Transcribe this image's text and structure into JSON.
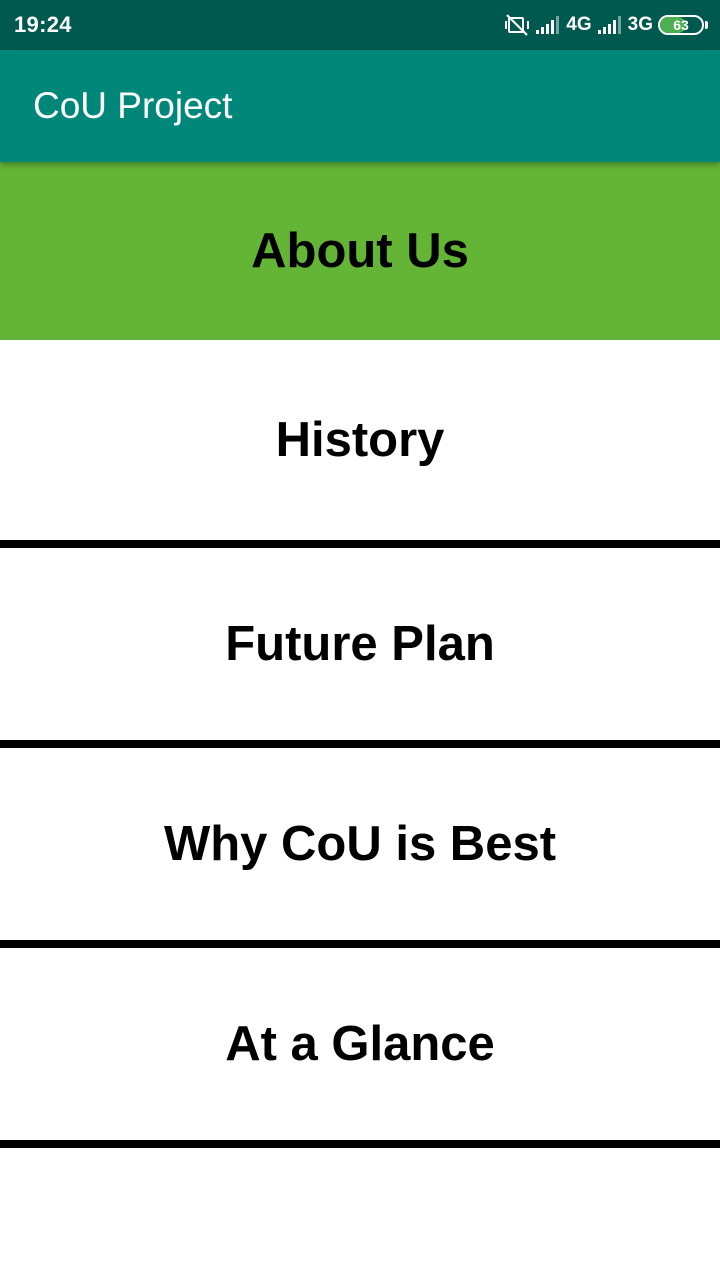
{
  "status_bar": {
    "time": "19:24",
    "network_1": "4G",
    "network_2": "3G",
    "battery_level": "63",
    "battery_fraction": 0.63,
    "icons": [
      "vibrate-off-icon",
      "signal-icon",
      "signal-icon",
      "battery-icon"
    ]
  },
  "app_bar": {
    "title": "CoU Project",
    "color": "#00877a"
  },
  "menu": {
    "accent_color": "#64b436",
    "items": [
      {
        "label": "About Us",
        "selected": true
      },
      {
        "label": "History",
        "selected": false
      },
      {
        "label": "Future Plan",
        "selected": false
      },
      {
        "label": "Why CoU is Best",
        "selected": false
      },
      {
        "label": "At a Glance",
        "selected": false
      }
    ]
  }
}
